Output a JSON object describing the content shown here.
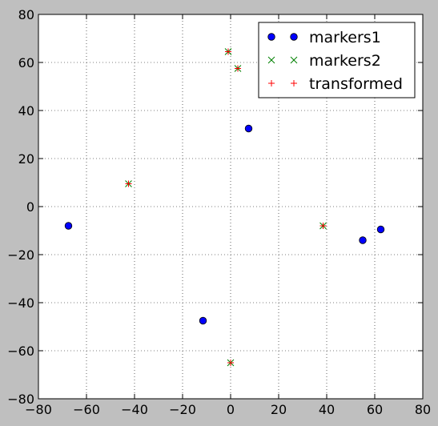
{
  "chart_data": {
    "type": "scatter",
    "title": "",
    "xlabel": "",
    "ylabel": "",
    "xlim": [
      -80,
      80
    ],
    "ylim": [
      -80,
      80
    ],
    "xticks": [
      -80,
      -60,
      -40,
      -20,
      0,
      20,
      40,
      60,
      80
    ],
    "yticks": [
      -80,
      -60,
      -40,
      -20,
      0,
      20,
      40,
      60,
      80
    ],
    "grid": true,
    "legend_position": "top-right",
    "series": [
      {
        "name": "markers1",
        "marker": "circle",
        "color": "#0000ff",
        "points": [
          {
            "x": -67.5,
            "y": -8
          },
          {
            "x": -11.5,
            "y": -47.5
          },
          {
            "x": 7.5,
            "y": 32.5
          },
          {
            "x": 55,
            "y": -14
          },
          {
            "x": 62.5,
            "y": -9.5
          }
        ]
      },
      {
        "name": "markers2",
        "marker": "x",
        "color": "#008000",
        "points": [
          {
            "x": -42.5,
            "y": 9.5
          },
          {
            "x": -1,
            "y": 64.5
          },
          {
            "x": 3,
            "y": 57.5
          },
          {
            "x": 38.5,
            "y": -8
          },
          {
            "x": 0,
            "y": -65
          }
        ]
      },
      {
        "name": "transformed",
        "marker": "plus",
        "color": "#ff0000",
        "points": [
          {
            "x": -42.5,
            "y": 9.5
          },
          {
            "x": -1,
            "y": 64.5
          },
          {
            "x": 3,
            "y": 57.5
          },
          {
            "x": 38.5,
            "y": -8
          },
          {
            "x": 0,
            "y": -65
          }
        ]
      }
    ]
  }
}
